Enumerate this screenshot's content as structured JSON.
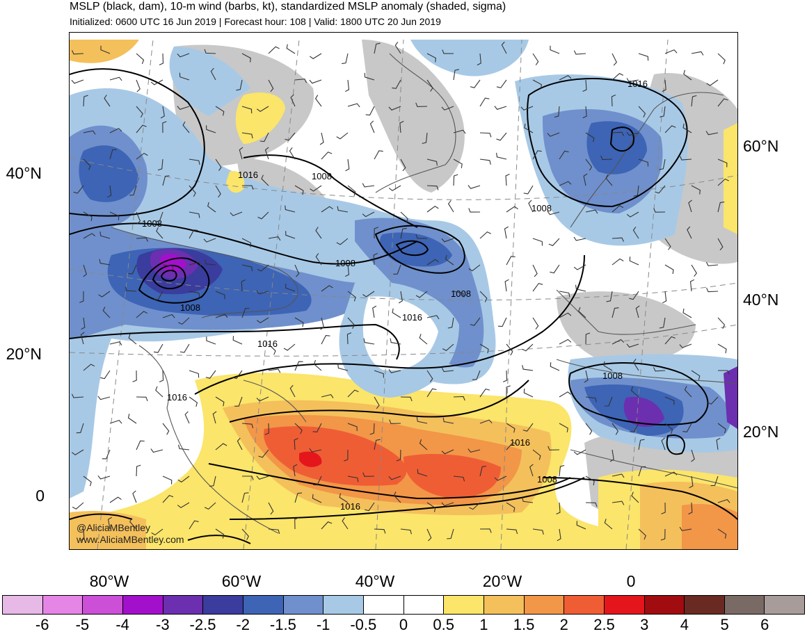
{
  "header": {
    "title": "MSLP (black, dam), 10-m wind (barbs, kt), standardized MSLP anomaly (shaded, sigma)",
    "subtitle": "Initialized: 0600 UTC 16 Jun 2019 | Forecast hour: 108 | Valid: 1800 UTC 20 Jun 2019"
  },
  "axes": {
    "lat_left": [
      "40°N",
      "20°N",
      "0"
    ],
    "lat_right": [
      "60°N",
      "40°N",
      "20°N"
    ],
    "lon_bottom": [
      "80°W",
      "60°W",
      "40°W",
      "20°W",
      "0"
    ]
  },
  "credit": {
    "handle": "@AliciaMBentley",
    "site": "www.AliciaMBentley.com"
  },
  "contour_labels": [
    "1016",
    "1008",
    "1008",
    "1008",
    "1016",
    "1008",
    "1008",
    "1008",
    "1016",
    "1016",
    "1016",
    "1008",
    "1016",
    "1008",
    "1016"
  ],
  "colorbar": {
    "colors": [
      "#e7b9e6",
      "#e586e6",
      "#cc4fd8",
      "#a310cc",
      "#6b2fb0",
      "#3a3c9e",
      "#3d64b5",
      "#6f90cc",
      "#a7c9e6",
      "#ffffff",
      "#ffffff",
      "#fbe56a",
      "#f4c05b",
      "#f29648",
      "#ef5d35",
      "#e4161c",
      "#a00c10",
      "#6a2a24",
      "#7a6a66",
      "#a89c9a"
    ],
    "ticks": [
      "-6",
      "-5",
      "-4",
      "-3",
      "-2.5",
      "-2",
      "-1.5",
      "-1",
      "-0.5",
      "0",
      "0.5",
      "1",
      "1.5",
      "2",
      "2.5",
      "3",
      "4",
      "5",
      "6"
    ]
  },
  "palette": {
    "land_gray": "#c8c8c8",
    "coastline": "#555555",
    "contour": "#000000"
  }
}
